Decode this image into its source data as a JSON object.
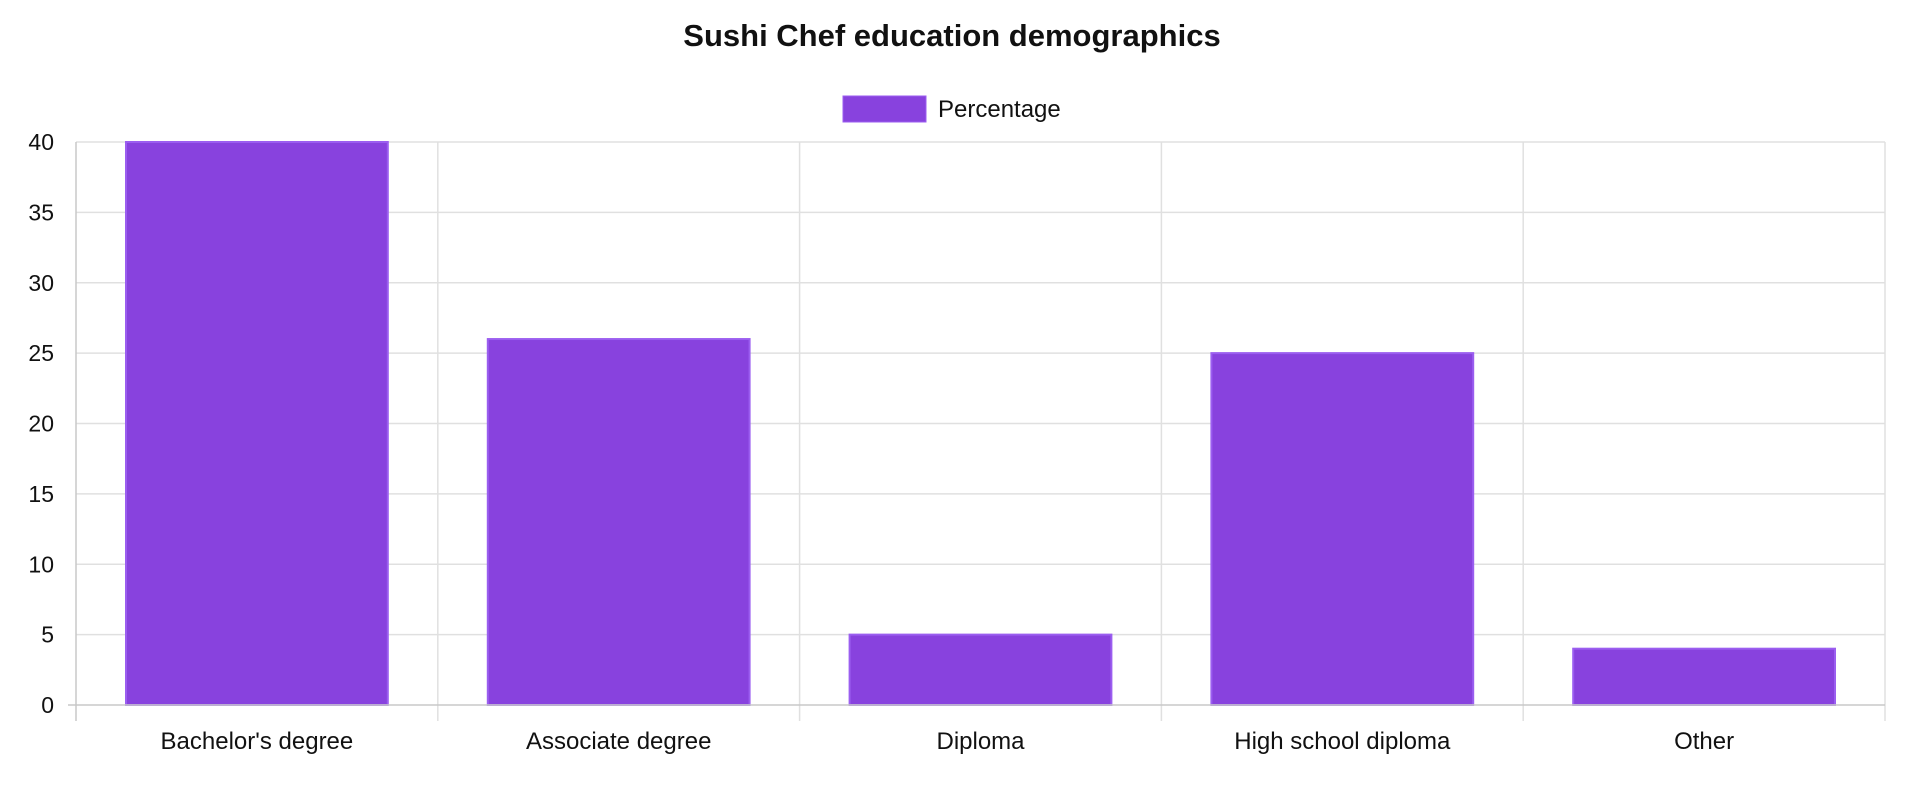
{
  "chart_data": {
    "type": "bar",
    "title": "Sushi Chef education demographics",
    "categories": [
      "Bachelor's degree",
      "Associate degree",
      "Diploma",
      "High school diploma",
      "Other"
    ],
    "series": [
      {
        "name": "Percentage",
        "values": [
          40,
          26,
          5,
          25,
          4
        ],
        "color": "#8842de",
        "border_color": "#9b5ef0"
      }
    ],
    "ylim": [
      0,
      40
    ],
    "yticks": [
      0,
      5,
      10,
      15,
      20,
      25,
      30,
      35,
      40
    ],
    "grid": true,
    "legend": "top-center",
    "grid_color": "#e0e0e0",
    "axis_color": "#c8c8c8",
    "text_color": "#111111"
  }
}
